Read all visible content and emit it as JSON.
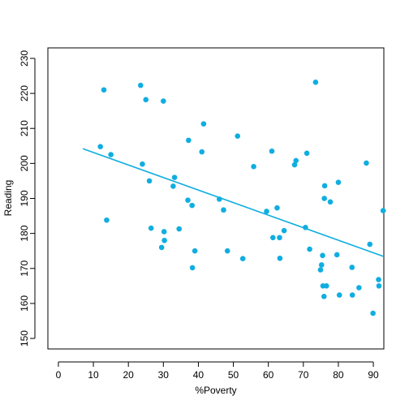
{
  "chart_data": {
    "type": "scatter",
    "title": "",
    "xlabel": "%Poverty",
    "ylabel": "Reading",
    "xlim": [
      -3,
      93
    ],
    "ylim": [
      147,
      233
    ],
    "x_ticks": [
      0,
      10,
      20,
      30,
      40,
      50,
      60,
      70,
      80,
      90
    ],
    "y_ticks": [
      150,
      160,
      170,
      180,
      190,
      200,
      210,
      220,
      230
    ],
    "grid": false,
    "legend": "none",
    "point_color": "#10aee0",
    "line_color": "#10aee0",
    "points": [
      {
        "x": 12,
        "y": 204.8
      },
      {
        "x": 13,
        "y": 221
      },
      {
        "x": 13.8,
        "y": 183.8
      },
      {
        "x": 15,
        "y": 202.5
      },
      {
        "x": 23.5,
        "y": 222.3
      },
      {
        "x": 24,
        "y": 199.8
      },
      {
        "x": 25,
        "y": 218.2
      },
      {
        "x": 26,
        "y": 195
      },
      {
        "x": 26.5,
        "y": 181.5
      },
      {
        "x": 29.5,
        "y": 176
      },
      {
        "x": 30,
        "y": 217.8
      },
      {
        "x": 30.2,
        "y": 180.5
      },
      {
        "x": 30.3,
        "y": 178
      },
      {
        "x": 32.8,
        "y": 193.5
      },
      {
        "x": 33.2,
        "y": 196
      },
      {
        "x": 34.5,
        "y": 181.3
      },
      {
        "x": 37,
        "y": 189.5
      },
      {
        "x": 37.2,
        "y": 206.6
      },
      {
        "x": 38.2,
        "y": 188
      },
      {
        "x": 38.3,
        "y": 170.2
      },
      {
        "x": 39,
        "y": 175
      },
      {
        "x": 41,
        "y": 203.3
      },
      {
        "x": 41.5,
        "y": 211.3
      },
      {
        "x": 46,
        "y": 189.8
      },
      {
        "x": 47.2,
        "y": 186.7
      },
      {
        "x": 48.3,
        "y": 175
      },
      {
        "x": 51.2,
        "y": 207.8
      },
      {
        "x": 52.7,
        "y": 172.8
      },
      {
        "x": 55.8,
        "y": 199.1
      },
      {
        "x": 59.5,
        "y": 186.3
      },
      {
        "x": 61,
        "y": 203.5
      },
      {
        "x": 61.3,
        "y": 178.8
      },
      {
        "x": 62.5,
        "y": 187.3
      },
      {
        "x": 63.2,
        "y": 178.8
      },
      {
        "x": 63.3,
        "y": 172.9
      },
      {
        "x": 64.5,
        "y": 180.8
      },
      {
        "x": 67.5,
        "y": 199.6
      },
      {
        "x": 67.9,
        "y": 200.8
      },
      {
        "x": 70.6,
        "y": 181.7
      },
      {
        "x": 71,
        "y": 202.9
      },
      {
        "x": 71.8,
        "y": 175.5
      },
      {
        "x": 73.5,
        "y": 223.2
      },
      {
        "x": 74.9,
        "y": 169.6
      },
      {
        "x": 75.2,
        "y": 171
      },
      {
        "x": 75.5,
        "y": 173.7
      },
      {
        "x": 75.6,
        "y": 165
      },
      {
        "x": 75.9,
        "y": 162
      },
      {
        "x": 76,
        "y": 190
      },
      {
        "x": 76.1,
        "y": 193.6
      },
      {
        "x": 76.6,
        "y": 165
      },
      {
        "x": 77.7,
        "y": 189
      },
      {
        "x": 79.6,
        "y": 173.9
      },
      {
        "x": 80,
        "y": 194.6
      },
      {
        "x": 80.3,
        "y": 162.4
      },
      {
        "x": 83.9,
        "y": 170.3
      },
      {
        "x": 84,
        "y": 162.4
      },
      {
        "x": 85.9,
        "y": 164.5
      },
      {
        "x": 88,
        "y": 200.1
      },
      {
        "x": 89,
        "y": 176.9
      },
      {
        "x": 89.9,
        "y": 157.2
      },
      {
        "x": 91.5,
        "y": 166.8
      },
      {
        "x": 91.6,
        "y": 165
      },
      {
        "x": 92.8,
        "y": 186.5
      }
    ],
    "trend_line": {
      "x": [
        7,
        93
      ],
      "y": [
        204.2,
        173.4
      ]
    }
  }
}
